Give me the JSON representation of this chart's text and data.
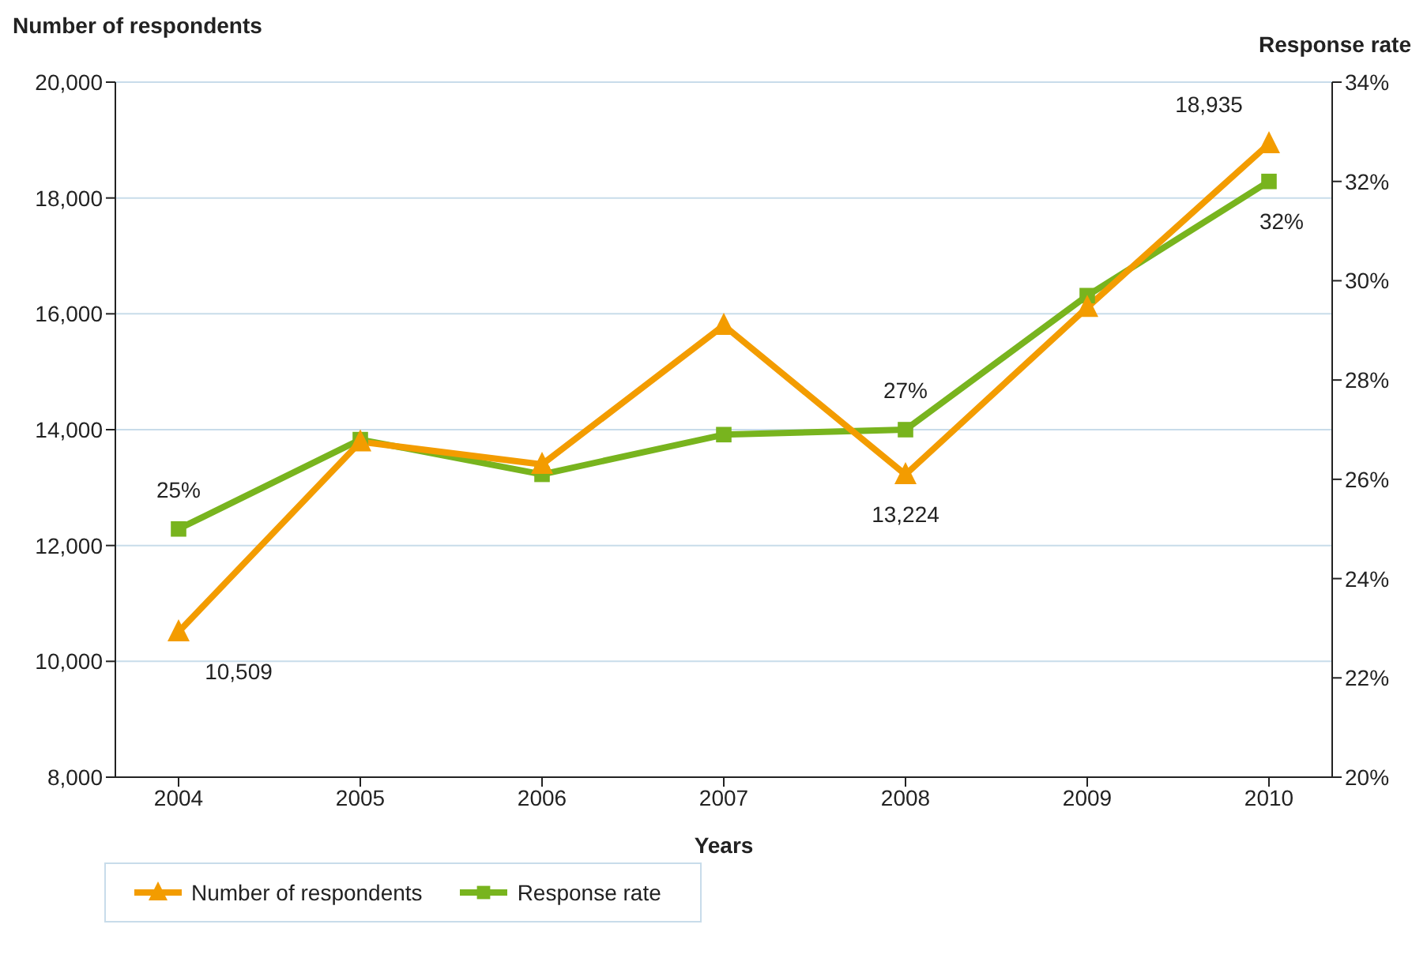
{
  "chart_data": {
    "type": "line",
    "xlabel": "Years",
    "ylabel": "Number of respondents",
    "y2label": "Response rate",
    "categories": [
      "2004",
      "2005",
      "2006",
      "2007",
      "2008",
      "2009",
      "2010"
    ],
    "series": [
      {
        "name": "Number of respondents",
        "color": "#f39c00",
        "marker": "triangle",
        "values": [
          10509,
          13790,
          13400,
          15800,
          13224,
          16110,
          18935
        ],
        "value_labels": [
          "10,509",
          null,
          null,
          null,
          "13,224",
          null,
          "18,935"
        ]
      },
      {
        "name": "Response rate",
        "color": "#78b41e",
        "marker": "square",
        "axis": "y2",
        "values": [
          25,
          26.8,
          26.1,
          26.9,
          27,
          29.7,
          32
        ],
        "value_labels": [
          "25%",
          null,
          null,
          null,
          "27%",
          null,
          "32%"
        ]
      }
    ],
    "ylim": [
      8000,
      20000
    ],
    "yticks": [
      {
        "value": 8000,
        "label": "8,000"
      },
      {
        "value": 10000,
        "label": "10,000"
      },
      {
        "value": 12000,
        "label": "12,000"
      },
      {
        "value": 14000,
        "label": "14,000"
      },
      {
        "value": 16000,
        "label": "16,000"
      },
      {
        "value": 18000,
        "label": "18,000"
      },
      {
        "value": 20000,
        "label": "20,000"
      }
    ],
    "y2lim": [
      20,
      34
    ],
    "y2ticks": [
      {
        "value": 20,
        "label": "20%"
      },
      {
        "value": 22,
        "label": "22%"
      },
      {
        "value": 24,
        "label": "24%"
      },
      {
        "value": 26,
        "label": "26%"
      },
      {
        "value": 28,
        "label": "28%"
      },
      {
        "value": 30,
        "label": "30%"
      },
      {
        "value": 32,
        "label": "32%"
      },
      {
        "value": 34,
        "label": "34%"
      }
    ],
    "grid": "y",
    "legend": "bottom",
    "line_style": "solid"
  }
}
